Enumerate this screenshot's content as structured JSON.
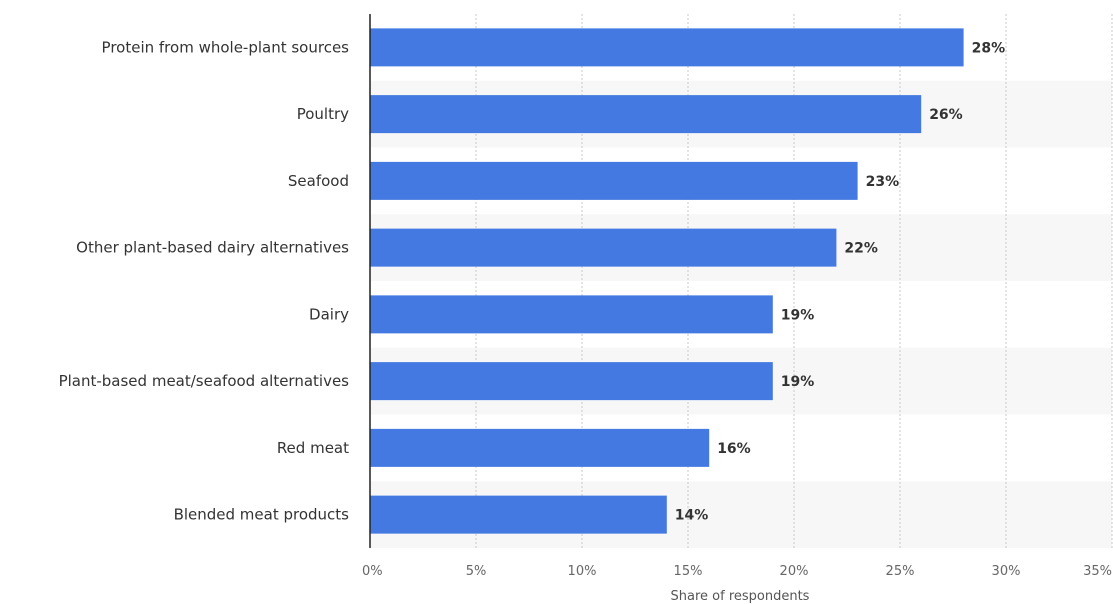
{
  "chart_data": {
    "type": "bar",
    "orientation": "horizontal",
    "categories": [
      "Protein from whole-plant sources",
      "Poultry",
      "Seafood",
      "Other plant-based dairy alternatives",
      "Dairy",
      "Plant-based meat/seafood alternatives",
      "Red meat",
      "Blended meat products"
    ],
    "values": [
      28,
      26,
      23,
      22,
      19,
      19,
      16,
      14
    ],
    "value_labels": [
      "28%",
      "26%",
      "23%",
      "22%",
      "19%",
      "19%",
      "16%",
      "14%"
    ],
    "xlabel": "Share of respondents",
    "xlim": [
      0,
      35
    ],
    "xticks": [
      0,
      5,
      10,
      15,
      20,
      25,
      30,
      35
    ],
    "xtick_labels": [
      "0%",
      "5%",
      "10%",
      "15%",
      "20%",
      "25%",
      "30%",
      "35%"
    ],
    "grid": true,
    "bar_color": "#4379e1",
    "band_color": "#f7f7f7"
  }
}
